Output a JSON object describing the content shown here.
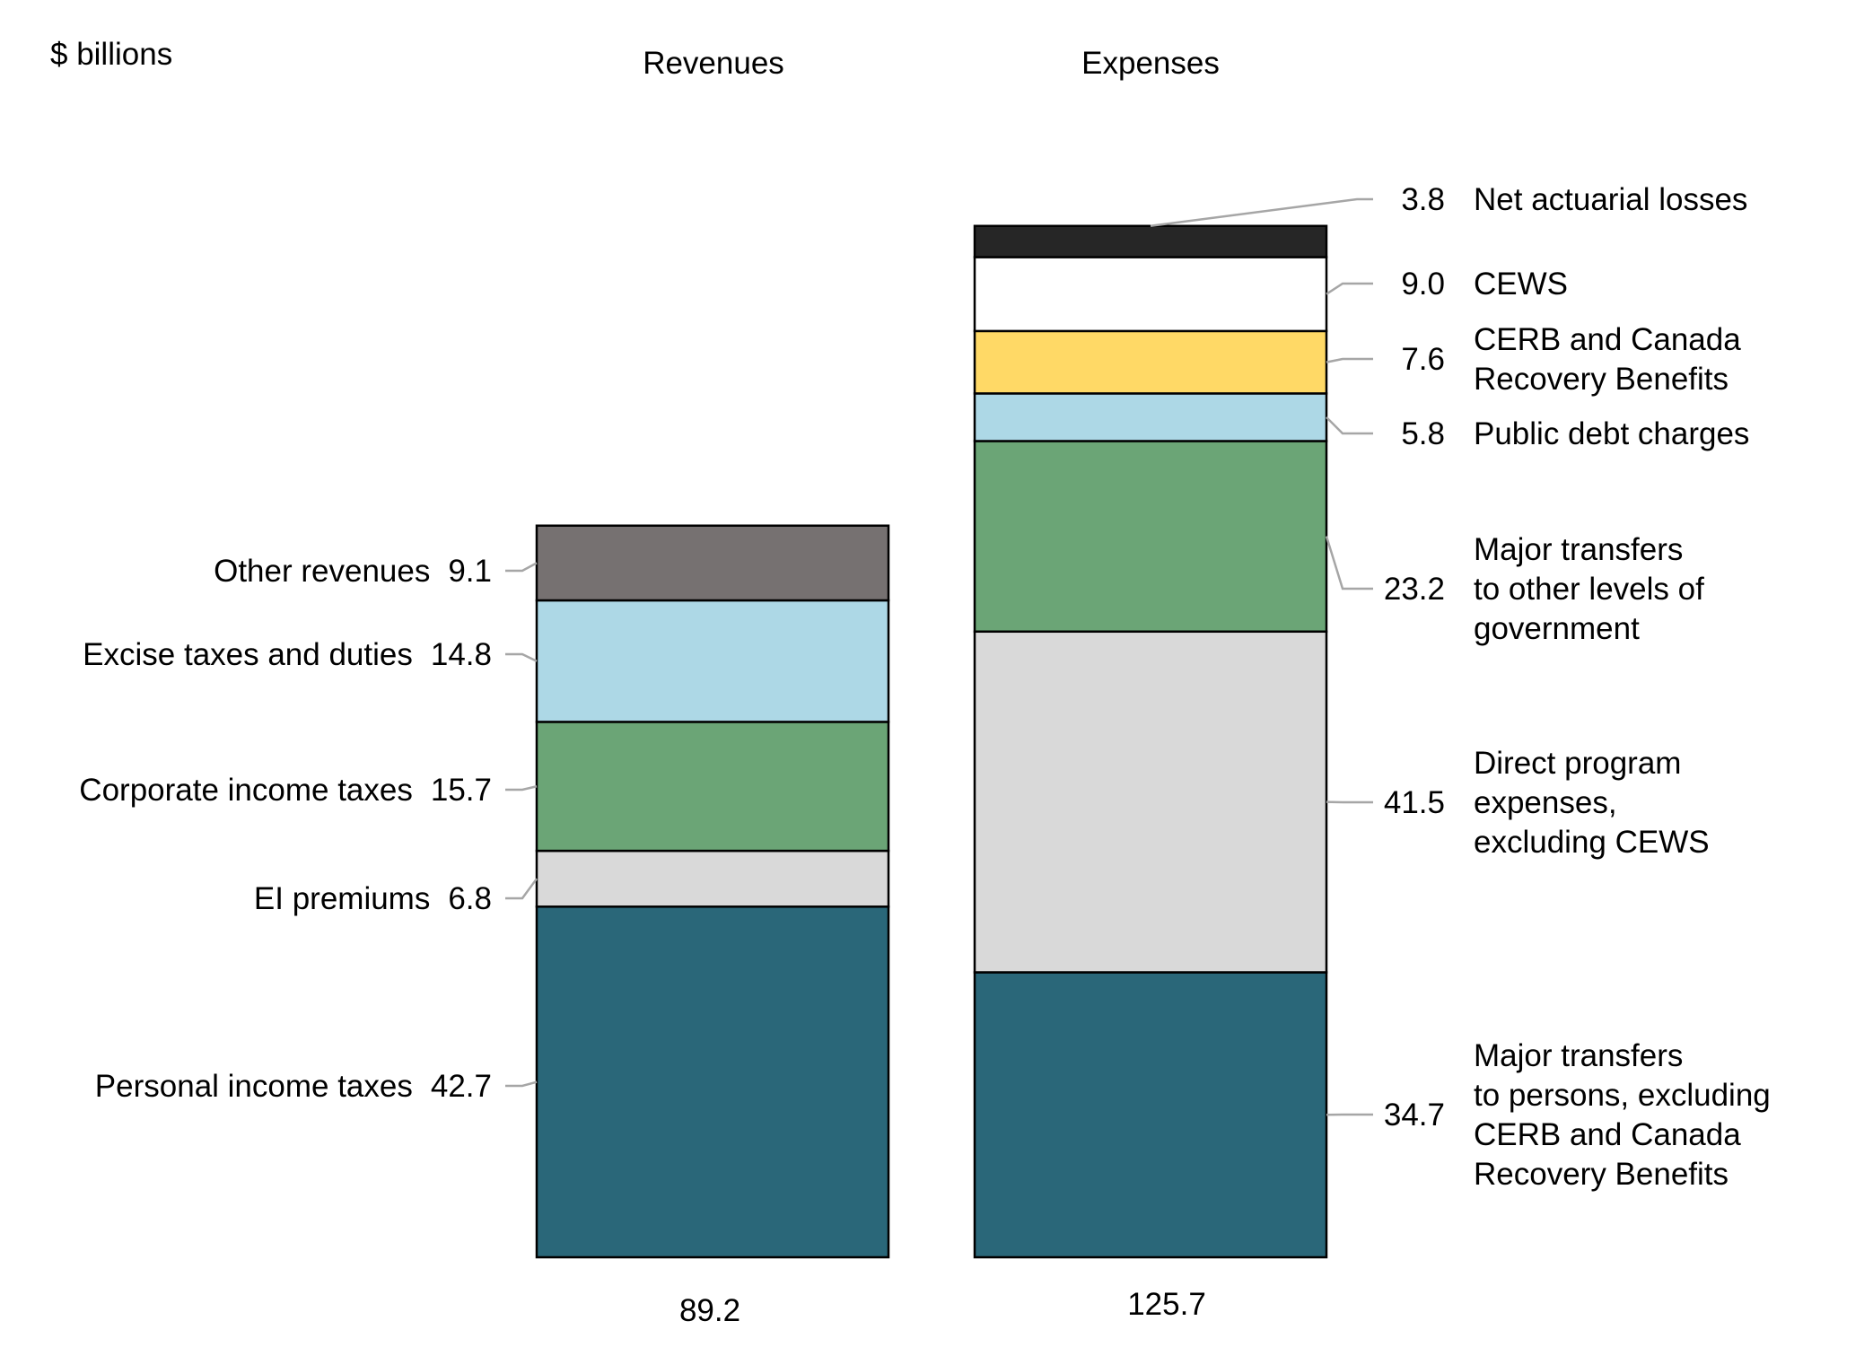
{
  "chart_data": {
    "type": "bar",
    "stacked": true,
    "unit_label": "$ billions",
    "categories": [
      "Revenues",
      "Expenses"
    ],
    "totals": [
      "89.2",
      "125.7"
    ],
    "colors": {
      "teal": "#2a6779",
      "lightgrey": "#d9d9d9",
      "green": "#6ba576",
      "lightblue": "#add8e6",
      "darkgrey": "#767171",
      "yellow": "#ffd966",
      "black": "#262626",
      "white": "#ffffff",
      "leader": "#a6a6a6"
    },
    "revenues": [
      {
        "label_lines": [
          "Personal income taxes"
        ],
        "value": 42.7,
        "value_label": "42.7",
        "color": "#2a6779"
      },
      {
        "label_lines": [
          "EI premiums"
        ],
        "value": 6.8,
        "value_label": "6.8",
        "color": "#d9d9d9"
      },
      {
        "label_lines": [
          "Corporate income taxes"
        ],
        "value": 15.7,
        "value_label": "15.7",
        "color": "#6ba576"
      },
      {
        "label_lines": [
          "Excise taxes and duties"
        ],
        "value": 14.8,
        "value_label": "14.8",
        "color": "#add8e6"
      },
      {
        "label_lines": [
          "Other revenues"
        ],
        "value": 9.1,
        "value_label": "9.1",
        "color": "#767171"
      }
    ],
    "expenses": [
      {
        "label_lines": [
          "Major transfers",
          "to persons, excluding",
          "CERB and Canada",
          "Recovery Benefits"
        ],
        "value": 34.7,
        "value_label": "34.7",
        "color": "#2a6779"
      },
      {
        "label_lines": [
          "Direct program",
          "expenses,",
          "excluding CEWS"
        ],
        "value": 41.5,
        "value_label": "41.5",
        "color": "#d9d9d9"
      },
      {
        "label_lines": [
          "Major transfers",
          "to other levels of",
          "government"
        ],
        "value": 23.2,
        "value_label": "23.2",
        "color": "#6ba576"
      },
      {
        "label_lines": [
          "Public debt charges"
        ],
        "value": 5.8,
        "value_label": "5.8",
        "color": "#add8e6"
      },
      {
        "label_lines": [
          "CERB and Canada",
          "Recovery Benefits"
        ],
        "value": 7.6,
        "value_label": "7.6",
        "color": "#ffd966"
      },
      {
        "label_lines": [
          "CEWS"
        ],
        "value": 9.0,
        "value_label": "9.0",
        "color": "#ffffff"
      },
      {
        "label_lines": [
          "Net actuarial losses"
        ],
        "value": 3.8,
        "value_label": "3.8",
        "color": "#262626"
      }
    ]
  }
}
